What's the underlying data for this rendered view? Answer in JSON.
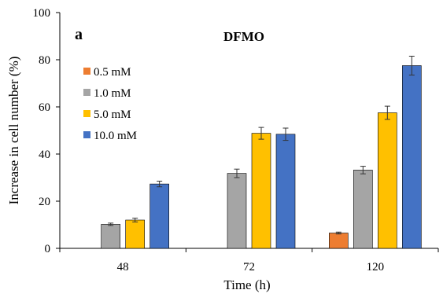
{
  "chart_data": {
    "type": "bar",
    "panel_label": "a",
    "title": "DFMO",
    "xlabel": "Time (h)",
    "ylabel": "Increase in cell number (%)",
    "ylim": [
      0,
      100
    ],
    "yticks": [
      0,
      20,
      40,
      60,
      80,
      100
    ],
    "categories": [
      "48",
      "72",
      "120"
    ],
    "grid": false,
    "legend_position": "upper-left",
    "series": [
      {
        "name": "0.5 mM",
        "color": "#ED7D31",
        "values": [
          null,
          null,
          6.5
        ],
        "errors": [
          null,
          null,
          0.4
        ]
      },
      {
        "name": "1.0 mM",
        "color": "#A5A5A5",
        "values": [
          10.2,
          31.8,
          33.2
        ],
        "errors": [
          0.5,
          1.8,
          1.6
        ]
      },
      {
        "name": "5.0 mM",
        "color": "#FFC000",
        "values": [
          12.0,
          48.8,
          57.5
        ],
        "errors": [
          0.8,
          2.5,
          2.8
        ]
      },
      {
        "name": "10.0 mM",
        "color": "#4472C4",
        "values": [
          27.3,
          48.4,
          77.5
        ],
        "errors": [
          1.2,
          2.6,
          4.0
        ]
      }
    ]
  }
}
